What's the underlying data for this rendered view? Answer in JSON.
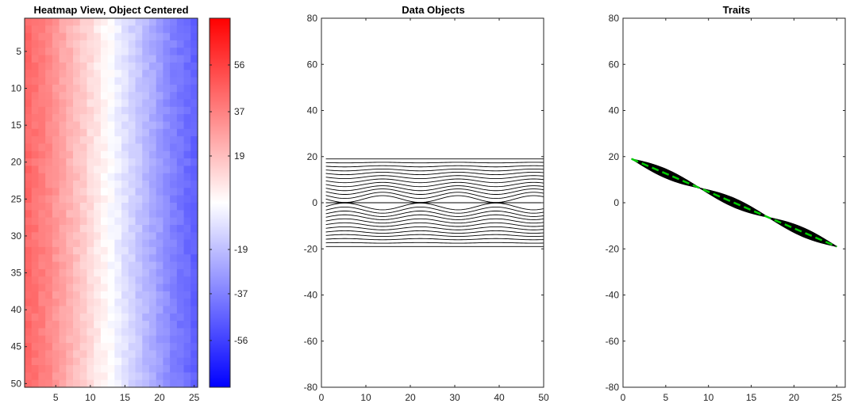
{
  "figure": {
    "background": "#ffffff"
  },
  "chart_data": [
    {
      "type": "heatmap",
      "title": "Heatmap View, Object Centered",
      "xlabel": "",
      "ylabel": "",
      "xlim": [
        0.5,
        25.5
      ],
      "ylim": [
        0.5,
        50.5
      ],
      "y_reversed": true,
      "x_ticks": [
        5,
        10,
        15,
        20,
        25
      ],
      "y_ticks": [
        5,
        10,
        15,
        20,
        25,
        30,
        35,
        40,
        45,
        50
      ],
      "rows": 50,
      "cols": 25,
      "column_values": [
        44,
        41,
        38,
        35,
        31,
        27,
        23,
        19,
        15,
        11,
        7,
        3,
        -1,
        -5,
        -9,
        -13,
        -17,
        -21,
        -25,
        -29,
        -33,
        -37,
        -40,
        -43,
        -46
      ],
      "cell_noise_amplitude": 3,
      "color_limits": [
        -75,
        75
      ],
      "colormap": [
        "#0000ff",
        "#ffffff",
        "#ff0000"
      ],
      "colorbar": {
        "ticks": [
          56,
          37,
          19,
          -19,
          -37,
          -56
        ],
        "labels": [
          "56",
          "37",
          "19",
          "-19",
          "-37",
          "-56"
        ]
      },
      "grid": false
    },
    {
      "type": "line",
      "title": "Data Objects",
      "xlabel": "",
      "ylabel": "",
      "xlim": [
        0,
        50
      ],
      "ylim": [
        -80,
        80
      ],
      "x_ticks": [
        0,
        10,
        20,
        30,
        40,
        50
      ],
      "y_ticks": [
        -80,
        -60,
        -40,
        -20,
        0,
        20,
        40,
        60,
        80
      ],
      "y_tick_labels": [
        "-80",
        "-60",
        "-40",
        "-20",
        "0",
        "20",
        "40",
        "60",
        "80"
      ],
      "x": [
        1,
        50
      ],
      "num_series": 25,
      "series_offsets": [
        19,
        17.4,
        15.8,
        14.2,
        12.7,
        11.1,
        9.5,
        7.9,
        6.3,
        4.8,
        3.2,
        1.6,
        0,
        -1.6,
        -3.2,
        -4.8,
        -6.3,
        -7.9,
        -9.5,
        -11.1,
        -12.7,
        -14.2,
        -15.8,
        -17.4,
        -19
      ],
      "wave_period": 17,
      "wave_amplitude_max": 1.6,
      "line_color": "#000000",
      "grid": false
    },
    {
      "type": "line",
      "title": "Traits",
      "xlabel": "",
      "ylabel": "",
      "xlim": [
        0,
        26
      ],
      "ylim": [
        -80,
        80
      ],
      "x_ticks": [
        0,
        5,
        10,
        15,
        20,
        25
      ],
      "y_ticks": [
        -80,
        -60,
        -40,
        -20,
        0,
        20,
        40,
        60,
        80
      ],
      "y_tick_labels": [
        "-80",
        "-60",
        "-40",
        "-20",
        "0",
        "20",
        "40",
        "60",
        "80"
      ],
      "x": [
        1,
        25
      ],
      "num_series": 50,
      "mean_line": {
        "x": [
          1,
          25
        ],
        "y": [
          19,
          -19
        ],
        "color": "#00cc00",
        "style": "dashed"
      },
      "spread_max": 2.0,
      "spread_period": 8,
      "line_color": "#000000",
      "grid": false
    }
  ]
}
